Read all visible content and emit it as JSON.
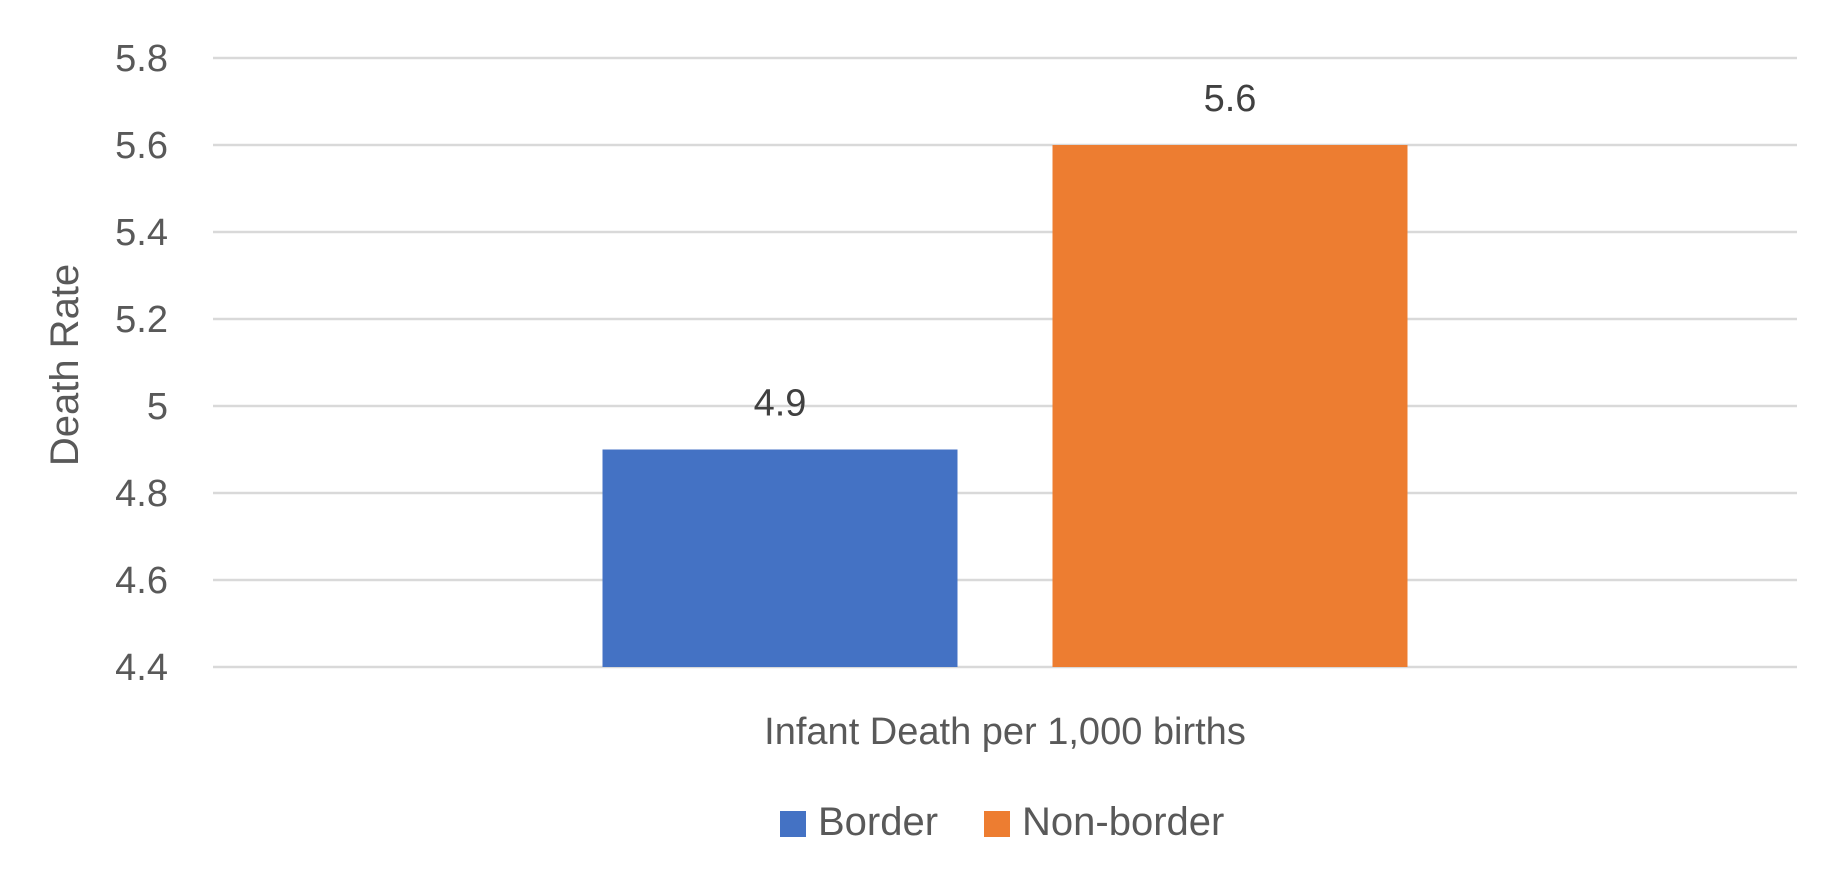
{
  "chart_data": {
    "type": "bar",
    "categories": [
      "Infant Death per 1,000 births"
    ],
    "series": [
      {
        "name": "Border",
        "values": [
          4.9
        ],
        "color": "#4472C4"
      },
      {
        "name": "Non-border",
        "values": [
          5.6
        ],
        "color": "#ED7D31"
      }
    ],
    "title": "",
    "xlabel": "",
    "ylabel": "Death Rate",
    "ylim": [
      4.4,
      5.8
    ],
    "yticks": [
      4.4,
      4.6,
      4.8,
      5,
      5.2,
      5.4,
      5.6,
      5.8
    ],
    "ytick_labels": [
      "4.4",
      "4.6",
      "4.8",
      "5",
      "5.2",
      "5.4",
      "5.6",
      "5.8"
    ],
    "data_labels": [
      "4.9",
      "5.6"
    ],
    "grid": true,
    "legend_position": "bottom",
    "gridline_color": "#D9D9D9"
  }
}
